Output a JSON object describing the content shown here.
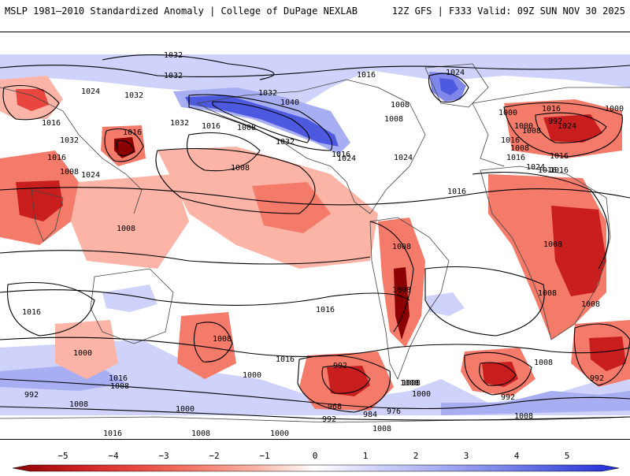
{
  "header": {
    "left_title": "MSLP 1981–2010 Standardized Anomaly | College of DuPage NEXLAB",
    "right_title": "12Z GFS | F333 Valid: 09Z SUN NOV 30 2025"
  },
  "colors": {
    "strong_negative": "#8b0000",
    "negative_4": "#c81e1e",
    "negative_3": "#e9463f",
    "negative_2": "#f47a6a",
    "negative_1": "#fbb4a6",
    "neutral": "#ffffff",
    "positive_1": "#cfd2fa",
    "positive_2": "#a8aef2",
    "positive_3": "#7f88ea",
    "positive_4": "#4d5ae0",
    "strong_positive": "#1e2ad8",
    "isobar": "#000000",
    "coastline": "#444444"
  },
  "colorbar": {
    "ticks": [
      "−5",
      "−4",
      "−3",
      "−2",
      "−1",
      "0",
      "1",
      "2",
      "3",
      "4",
      "5"
    ]
  },
  "map": {
    "isobar_labels": [
      "1032",
      "1032",
      "1024",
      "1032",
      "1016",
      "1016",
      "1032",
      "1016",
      "1008",
      "1024",
      "1032",
      "1016",
      "1008",
      "1032",
      "1040",
      "1008",
      "1032",
      "1016",
      "1024",
      "1024",
      "1024",
      "1016",
      "1008",
      "1008",
      "1016",
      "1008",
      "1024",
      "992",
      "1000",
      "1000",
      "1016",
      "1008",
      "1016",
      "1024",
      "1016",
      "1016",
      "1008",
      "1008",
      "1008",
      "1008",
      "1008",
      "1016",
      "1016",
      "1008",
      "1000",
      "1016",
      "1008",
      "992",
      "1016",
      "1000",
      "1008",
      "992",
      "968",
      "984",
      "976",
      "992",
      "1000",
      "1008",
      "1008",
      "992",
      "1008",
      "1016",
      "1000",
      "992",
      "1008",
      "1000",
      "1008",
      "1016",
      "1016",
      "1000",
      "1008",
      "1008"
    ]
  }
}
